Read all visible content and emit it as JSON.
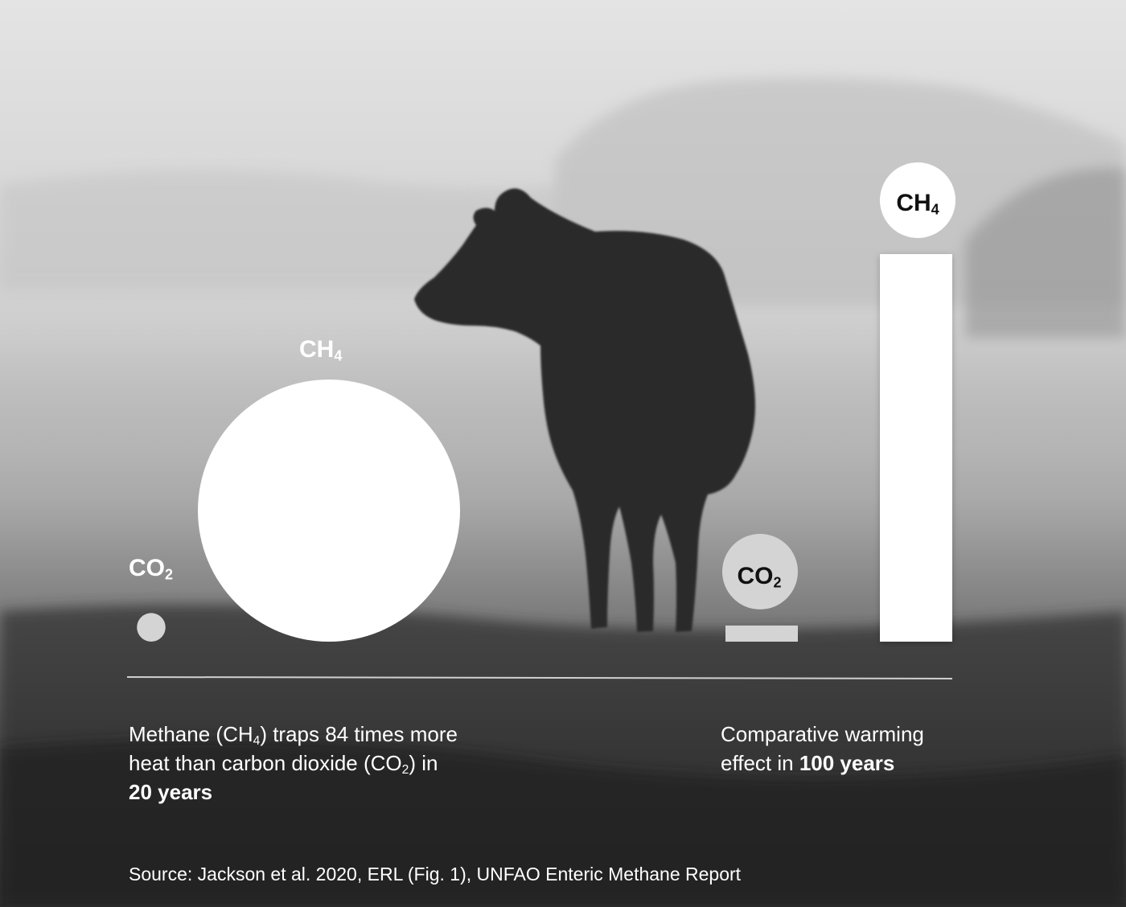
{
  "colors": {
    "ch4_mark": "#ffffff",
    "co2_mark": "#d4d4d4",
    "axis_line": "#d0d0d0",
    "text": "#ffffff"
  },
  "background": {
    "description_icon": "cow-silhouette-foggy-field"
  },
  "chart_data": [
    {
      "type": "bubble",
      "categories": [
        "CO2",
        "CH4"
      ],
      "labels": {
        "co2": {
          "base": "CO",
          "sub": "2"
        },
        "ch4": {
          "base": "CH",
          "sub": "4"
        }
      },
      "values": [
        1,
        84
      ],
      "caption": {
        "line1_a": "Methane (CH",
        "line1_sub": "4",
        "line1_b": ") traps 84 times more",
        "line2_a": "heat than carbon dioxide (CO",
        "line2_sub": "2",
        "line2_b": ") in",
        "line3_bold": "20 years"
      }
    },
    {
      "type": "bar",
      "categories": [
        "CO2",
        "CH4"
      ],
      "labels": {
        "co2": {
          "base": "CO",
          "sub": "2"
        },
        "ch4": {
          "base": "CH",
          "sub": "4"
        }
      },
      "values": [
        1,
        24
      ],
      "caption": {
        "line1": "Comparative warming",
        "line2_a": "effect in ",
        "line2_bold": "100 years"
      }
    }
  ],
  "source": "Source: Jackson et al. 2020, ERL (Fig. 1), UNFAO Enteric Methane Report"
}
